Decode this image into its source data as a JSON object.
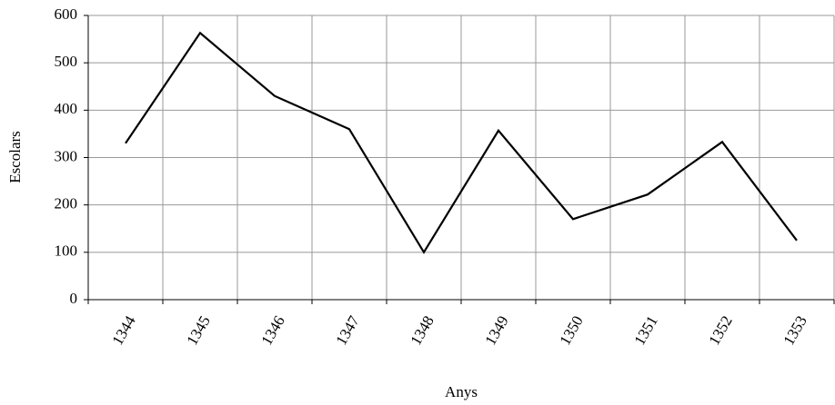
{
  "chart_data": {
    "type": "line",
    "x_label": "Anys",
    "y_label": "Escolars",
    "categories": [
      "1344",
      "1345",
      "1346",
      "1347",
      "1348",
      "1349",
      "1350",
      "1351",
      "1352",
      "1353"
    ],
    "values": [
      330,
      563,
      430,
      360,
      100,
      357,
      170,
      222,
      333,
      125
    ],
    "color": "#000000",
    "ylim": [
      0,
      600
    ],
    "yticks": [
      0,
      100,
      200,
      300,
      400,
      500,
      600
    ],
    "grid": true
  }
}
